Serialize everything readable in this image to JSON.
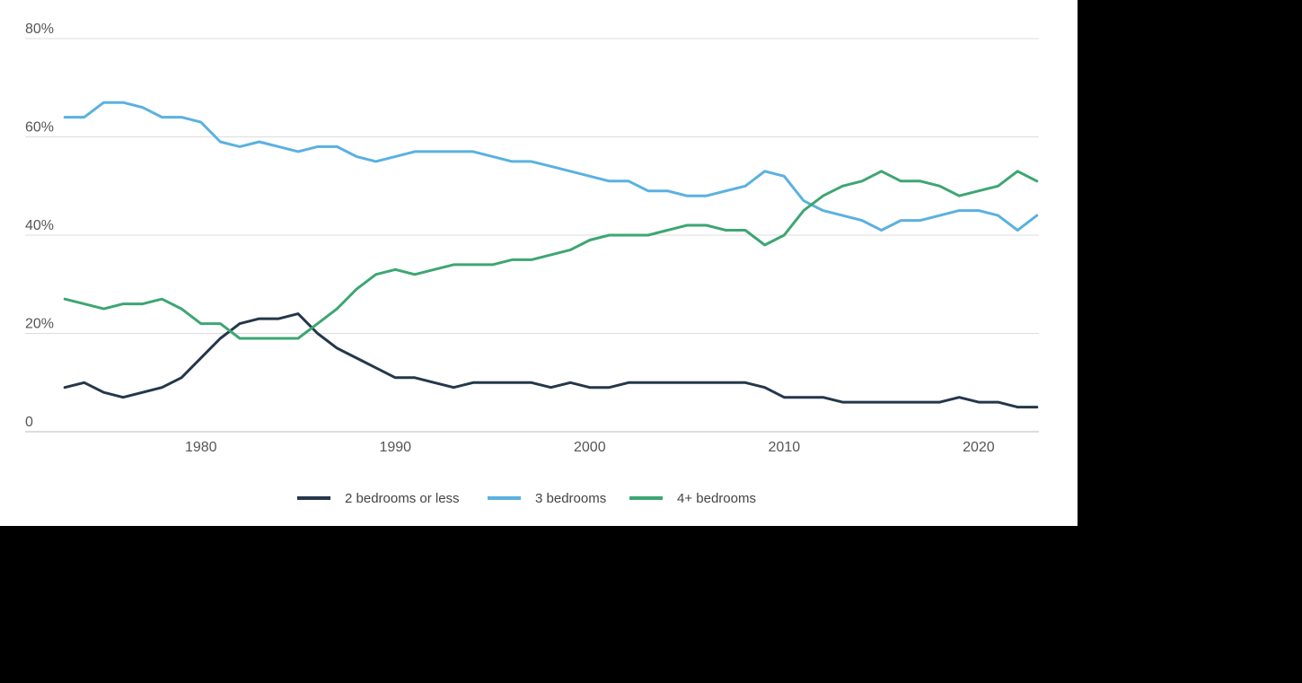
{
  "chart_data": {
    "type": "line",
    "x": [
      1973,
      1974,
      1975,
      1976,
      1977,
      1978,
      1979,
      1980,
      1981,
      1982,
      1983,
      1984,
      1985,
      1986,
      1987,
      1988,
      1989,
      1990,
      1991,
      1992,
      1993,
      1994,
      1995,
      1996,
      1997,
      1998,
      1999,
      2000,
      2001,
      2002,
      2003,
      2004,
      2005,
      2006,
      2007,
      2008,
      2009,
      2010,
      2011,
      2012,
      2013,
      2014,
      2015,
      2016,
      2017,
      2018,
      2019,
      2020,
      2021,
      2022,
      2023
    ],
    "xticks": [
      1980,
      1990,
      2000,
      2010,
      2020
    ],
    "xtick_labels": [
      "1980",
      "1990",
      "2000",
      "2010",
      "2020"
    ],
    "xlim": [
      1972.9,
      2023.1
    ],
    "ylim": [
      0,
      80
    ],
    "yticks": [
      0,
      20,
      40,
      60,
      80
    ],
    "ytick_labels": [
      "0",
      "20%",
      "40%",
      "60%",
      "80%"
    ],
    "grid": "horizontal",
    "legend_position": "bottom-center",
    "series": [
      {
        "name": "2 bedrooms or less",
        "color": "#24374a",
        "values": [
          9,
          10,
          8,
          7,
          8,
          9,
          11,
          15,
          19,
          22,
          23,
          23,
          24,
          20,
          17,
          15,
          13,
          11,
          11,
          10,
          9,
          10,
          10,
          10,
          10,
          9,
          10,
          9,
          9,
          10,
          10,
          10,
          10,
          10,
          10,
          10,
          9,
          7,
          7,
          7,
          6,
          6,
          6,
          6,
          6,
          6,
          7,
          6,
          6,
          5,
          5
        ]
      },
      {
        "name": "3 bedrooms",
        "color": "#5ab1e0",
        "values": [
          64,
          64,
          67,
          67,
          66,
          64,
          64,
          63,
          59,
          58,
          59,
          58,
          57,
          58,
          58,
          56,
          55,
          56,
          57,
          57,
          57,
          57,
          56,
          55,
          55,
          54,
          53,
          52,
          51,
          51,
          49,
          49,
          48,
          48,
          49,
          50,
          53,
          52,
          47,
          45,
          44,
          43,
          41,
          43,
          43,
          44,
          45,
          45,
          44,
          41,
          44
        ]
      },
      {
        "name": "4+ bedrooms",
        "color": "#3da673",
        "values": [
          27,
          26,
          25,
          26,
          26,
          27,
          25,
          22,
          22,
          19,
          19,
          19,
          19,
          22,
          25,
          29,
          32,
          33,
          32,
          33,
          34,
          34,
          34,
          35,
          35,
          36,
          37,
          39,
          40,
          40,
          40,
          41,
          42,
          42,
          41,
          41,
          38,
          40,
          45,
          48,
          50,
          51,
          53,
          51,
          51,
          50,
          48,
          49,
          50,
          53,
          51
        ]
      }
    ]
  }
}
